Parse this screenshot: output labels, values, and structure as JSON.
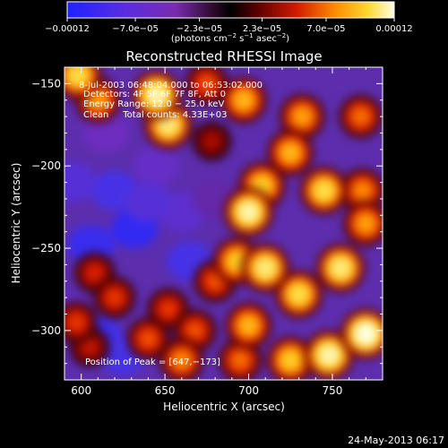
{
  "chart_data": {
    "type": "heatmap",
    "title": "Reconstructed RHESSI Image",
    "xlabel": "Heliocentric X (arcsec)",
    "ylabel": "Heliocentric Y (arcsec)",
    "xlim": [
      590,
      780
    ],
    "ylim": [
      -330,
      -140
    ],
    "x_ticks": [
      600,
      650,
      700,
      750
    ],
    "y_ticks": [
      -150,
      -200,
      -250,
      -300
    ],
    "x_tick_labels": [
      "600",
      "650",
      "700",
      "750"
    ],
    "y_tick_labels": [
      "−150",
      "−200",
      "−250",
      "−300"
    ],
    "colorbar": {
      "range": [
        -0.00012,
        0.00012
      ],
      "tick_labels": [
        "−0.00012",
        "−7.0e−05",
        "−2.3e−05",
        "2.3e−05",
        "7.0e−05",
        "0.00012"
      ],
      "tick_values": [
        -0.00012,
        -7e-05,
        -2.3e-05,
        2.3e-05,
        7e-05,
        0.00012
      ],
      "units_main": "(photons cm",
      "units_sup1": "−2",
      "units_mid": " s",
      "units_sup2": "−1",
      "units_end": " asec",
      "units_sup3": "−2",
      "units_close": ")"
    },
    "annotations": [
      "8‑Jul‑2003 06:48:04.000 to 06:53:02.000",
      "Detectors: 4F 5F 6F 7F 8F, Att 0",
      "Energy Range: 12.0 − 25.0 keV",
      "Clean     Total counts: 4.33E+03"
    ],
    "peak_label": "Position of Peak = [647,−173]",
    "peak": [
      647,
      -173
    ],
    "bright_sources": [
      {
        "x": 598,
        "y": -145,
        "level": 0.85
      },
      {
        "x": 610,
        "y": -160,
        "level": 0.7
      },
      {
        "x": 645,
        "y": -157,
        "level": 0.95
      },
      {
        "x": 652,
        "y": -175,
        "level": 0.9
      },
      {
        "x": 675,
        "y": -150,
        "level": 0.55
      },
      {
        "x": 697,
        "y": -160,
        "level": 0.75
      },
      {
        "x": 732,
        "y": -170,
        "level": 0.7
      },
      {
        "x": 725,
        "y": -192,
        "level": 0.75
      },
      {
        "x": 767,
        "y": -170,
        "level": 0.6
      },
      {
        "x": 708,
        "y": -212,
        "level": 0.8
      },
      {
        "x": 700,
        "y": -228,
        "level": 0.95
      },
      {
        "x": 745,
        "y": -215,
        "level": 0.85
      },
      {
        "x": 768,
        "y": -215,
        "level": 0.65
      },
      {
        "x": 693,
        "y": -258,
        "level": 0.8
      },
      {
        "x": 710,
        "y": -262,
        "level": 0.9
      },
      {
        "x": 730,
        "y": -278,
        "level": 0.85
      },
      {
        "x": 755,
        "y": -262,
        "level": 0.9
      },
      {
        "x": 770,
        "y": -235,
        "level": 0.7
      },
      {
        "x": 700,
        "y": -297,
        "level": 0.75
      },
      {
        "x": 748,
        "y": -315,
        "level": 0.95
      },
      {
        "x": 770,
        "y": -302,
        "level": 1.0
      },
      {
        "x": 725,
        "y": -318,
        "level": 0.8
      },
      {
        "x": 695,
        "y": -318,
        "level": 0.6
      },
      {
        "x": 652,
        "y": -287,
        "level": 0.5
      },
      {
        "x": 640,
        "y": -305,
        "level": 0.55
      },
      {
        "x": 620,
        "y": -280,
        "level": 0.5
      },
      {
        "x": 608,
        "y": -265,
        "level": 0.45
      },
      {
        "x": 605,
        "y": -310,
        "level": 0.4
      },
      {
        "x": 680,
        "y": -270,
        "level": 0.55
      },
      {
        "x": 668,
        "y": -300,
        "level": 0.55
      },
      {
        "x": 660,
        "y": -318,
        "level": 0.65
      },
      {
        "x": 597,
        "y": -295,
        "level": 0.5
      },
      {
        "x": 678,
        "y": -185,
        "level": 0.35
      }
    ],
    "dark_sources": [
      {
        "x": 620,
        "y": -215,
        "level": -0.7
      },
      {
        "x": 632,
        "y": -238,
        "level": -0.85
      },
      {
        "x": 606,
        "y": -248,
        "level": -0.8
      },
      {
        "x": 610,
        "y": -303,
        "level": -0.75
      },
      {
        "x": 625,
        "y": -315,
        "level": -0.7
      },
      {
        "x": 665,
        "y": -258,
        "level": -0.7
      },
      {
        "x": 660,
        "y": -228,
        "level": -0.55
      },
      {
        "x": 595,
        "y": -210,
        "level": -0.6
      },
      {
        "x": 645,
        "y": -200,
        "level": -0.5
      },
      {
        "x": 592,
        "y": -290,
        "level": -0.5
      },
      {
        "x": 615,
        "y": -180,
        "level": -0.45
      },
      {
        "x": 640,
        "y": -222,
        "level": -0.6
      },
      {
        "x": 680,
        "y": -220,
        "level": -0.4
      }
    ]
  },
  "footer": {
    "date": "24‑May‑2013 06:17"
  }
}
